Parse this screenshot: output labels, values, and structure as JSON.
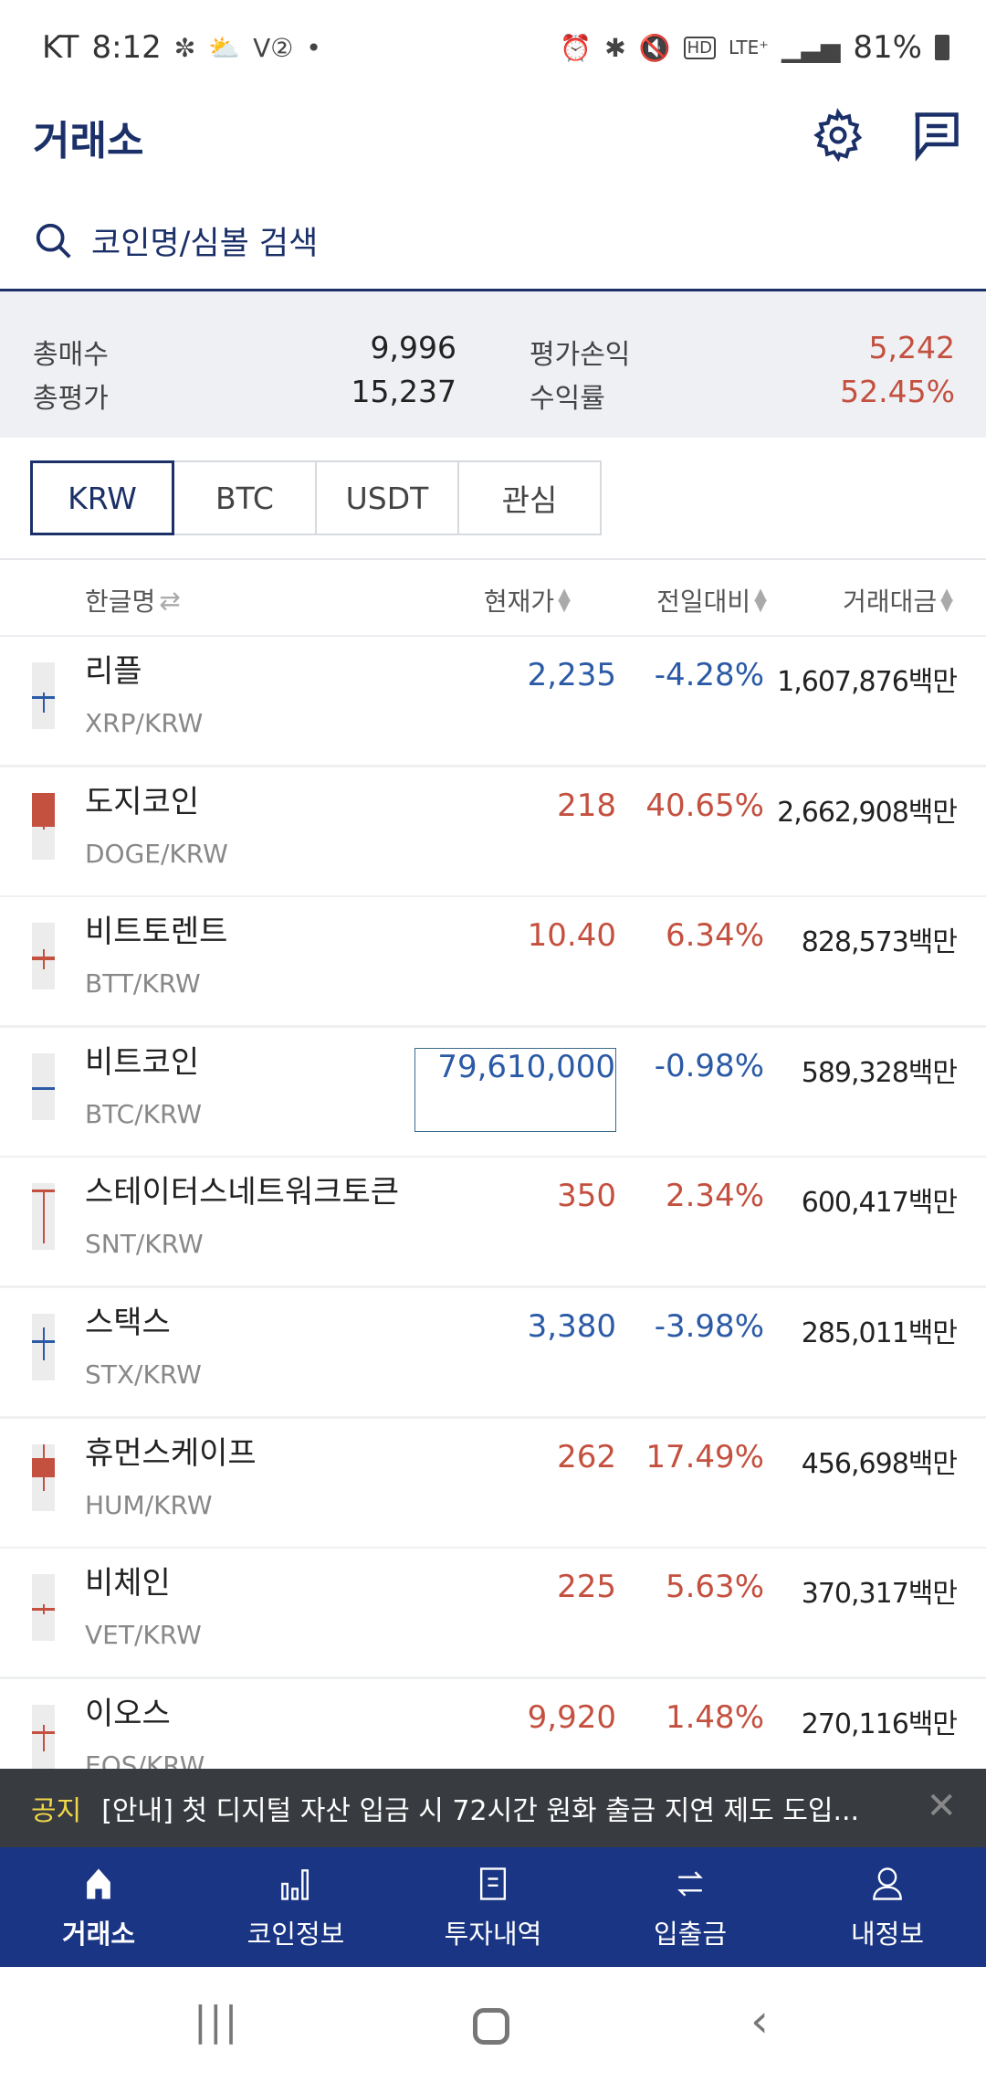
{
  "status_bar": {
    "carrier": "KT",
    "time": "8:12",
    "battery": "81%",
    "icons": [
      "network-icon",
      "weather-icon",
      "voicemail-icon",
      "dot-icon",
      "alarm-icon",
      "bluetooth-icon",
      "mute-icon",
      "hd-voice-icon",
      "lte-plus-icon",
      "signal-icon",
      "battery-icon"
    ]
  },
  "header": {
    "title": "거래소",
    "icons": [
      "gear-icon",
      "chat-icon"
    ]
  },
  "search": {
    "placeholder": "코인명/심볼 검색"
  },
  "summary": {
    "total_buy_label": "총매수",
    "total_buy": "9,996",
    "total_eval_label": "총평가",
    "total_eval": "15,237",
    "pnl_label": "평가손익",
    "pnl": "5,242",
    "return_label": "수익률",
    "return": "52.45%"
  },
  "tabs": [
    {
      "label": "KRW",
      "active": true
    },
    {
      "label": "BTC"
    },
    {
      "label": "USDT"
    },
    {
      "label": "관심"
    }
  ],
  "columns": {
    "name": "한글명",
    "price": "현재가",
    "change": "전일대비",
    "volume": "거래대금"
  },
  "colors": {
    "up": "#c4503f",
    "down": "#2b5aa6",
    "brand": "#1b3068",
    "nav": "#1a3583"
  },
  "coins": [
    {
      "name": "리플",
      "symbol": "XRP/KRW",
      "price": "2,235",
      "change": "-4.28%",
      "volume": "1,607,876백만",
      "dir": "down"
    },
    {
      "name": "도지코인",
      "symbol": "DOGE/KRW",
      "price": "218",
      "change": "40.65%",
      "volume": "2,662,908백만",
      "dir": "up"
    },
    {
      "name": "비트토렌트",
      "symbol": "BTT/KRW",
      "price": "10.40",
      "change": "6.34%",
      "volume": "828,573백만",
      "dir": "up"
    },
    {
      "name": "비트코인",
      "symbol": "BTC/KRW",
      "price": "79,610,000",
      "change": "-0.98%",
      "volume": "589,328백만",
      "dir": "down",
      "highlighted": true
    },
    {
      "name": "스테이터스네트워크토큰",
      "symbol": "SNT/KRW",
      "price": "350",
      "change": "2.34%",
      "volume": "600,417백만",
      "dir": "up"
    },
    {
      "name": "스택스",
      "symbol": "STX/KRW",
      "price": "3,380",
      "change": "-3.98%",
      "volume": "285,011백만",
      "dir": "down"
    },
    {
      "name": "휴먼스케이프",
      "symbol": "HUM/KRW",
      "price": "262",
      "change": "17.49%",
      "volume": "456,698백만",
      "dir": "up"
    },
    {
      "name": "비체인",
      "symbol": "VET/KRW",
      "price": "225",
      "change": "5.63%",
      "volume": "370,317백만",
      "dir": "up"
    },
    {
      "name": "이오스",
      "symbol": "EOS/KRW",
      "price": "9,920",
      "change": "1.48%",
      "volume": "270,116백만",
      "dir": "up"
    }
  ],
  "notice": {
    "tag": "공지",
    "text": "[안내] 첫 디지털 자산 입금 시 72시간 원화 출금 지연 제도 도입..."
  },
  "bottom_nav": [
    {
      "label": "거래소",
      "icon": "home-icon",
      "active": true
    },
    {
      "label": "코인정보",
      "icon": "bar-chart-icon"
    },
    {
      "label": "투자내역",
      "icon": "document-icon"
    },
    {
      "label": "입출금",
      "icon": "transfer-icon"
    },
    {
      "label": "내정보",
      "icon": "user-icon"
    }
  ]
}
